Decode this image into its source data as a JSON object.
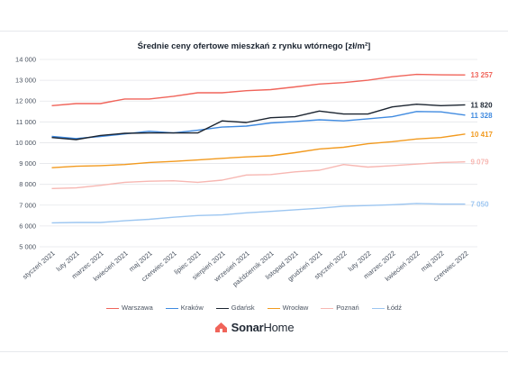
{
  "chart_data": {
    "type": "line",
    "title": "Średnie ceny ofertowe mieszkań z rynku wtórnego [zł/m²]",
    "xlabel": "",
    "ylabel": "",
    "ylim": [
      5000,
      14000
    ],
    "yticks": [
      "5 000",
      "6 000",
      "7 000",
      "8 000",
      "9 000",
      "10 000",
      "11 000",
      "12 000",
      "13 000",
      "14 000"
    ],
    "ytick_values": [
      5000,
      6000,
      7000,
      8000,
      9000,
      10000,
      11000,
      12000,
      13000,
      14000
    ],
    "grid": true,
    "legend_position": "bottom",
    "categories": [
      "styczeń 2021",
      "luty 2021",
      "marzec 2021",
      "kwiecień 2021",
      "maj 2021",
      "czerwiec 2021",
      "lipiec 2021",
      "sierpień 2021",
      "wrzesień 2021",
      "październik 2021",
      "listopad 2021",
      "grudzień 2021",
      "styczeń 2022",
      "luty 2022",
      "marzec 2022",
      "kwiecień 2022",
      "maj 2022",
      "czerwiec 2022"
    ],
    "series": [
      {
        "name": "Warszawa",
        "color": "#f0645a",
        "end_label": "13 257",
        "values": [
          11780,
          11880,
          11880,
          12100,
          12100,
          12230,
          12400,
          12400,
          12500,
          12550,
          12680,
          12820,
          12890,
          13000,
          13170,
          13280,
          13260,
          13257
        ]
      },
      {
        "name": "Kraków",
        "color": "#3f8ae0",
        "end_label": "11 328",
        "values": [
          10300,
          10200,
          10300,
          10420,
          10550,
          10470,
          10600,
          10750,
          10800,
          10950,
          11020,
          11100,
          11050,
          11150,
          11250,
          11500,
          11480,
          11328
        ]
      },
      {
        "name": "Gdańsk",
        "color": "#1b2430",
        "end_label": "11 820",
        "values": [
          10250,
          10150,
          10350,
          10450,
          10470,
          10470,
          10470,
          11050,
          10970,
          11200,
          11250,
          11520,
          11380,
          11380,
          11720,
          11850,
          11780,
          11820
        ]
      },
      {
        "name": "Wrocław",
        "color": "#f29a1f",
        "end_label": "10 417",
        "values": [
          8800,
          8870,
          8900,
          8950,
          9050,
          9100,
          9170,
          9250,
          9320,
          9370,
          9520,
          9700,
          9780,
          9950,
          10050,
          10180,
          10250,
          10417
        ]
      },
      {
        "name": "Poznań",
        "color": "#f7b7b2",
        "end_label": "9 079",
        "values": [
          7800,
          7830,
          7950,
          8100,
          8150,
          8170,
          8100,
          8200,
          8450,
          8470,
          8600,
          8680,
          8950,
          8830,
          8900,
          8970,
          9050,
          9079
        ]
      },
      {
        "name": "Łódź",
        "color": "#9cc6f1",
        "end_label": "7 050",
        "values": [
          6150,
          6170,
          6170,
          6250,
          6320,
          6420,
          6500,
          6530,
          6630,
          6700,
          6780,
          6850,
          6950,
          6980,
          7020,
          7080,
          7050,
          7050
        ]
      }
    ]
  },
  "brand": {
    "name_bold": "Sonar",
    "name_thin": "Home",
    "color": "#f0645a",
    "icon": "house-logo-icon"
  }
}
